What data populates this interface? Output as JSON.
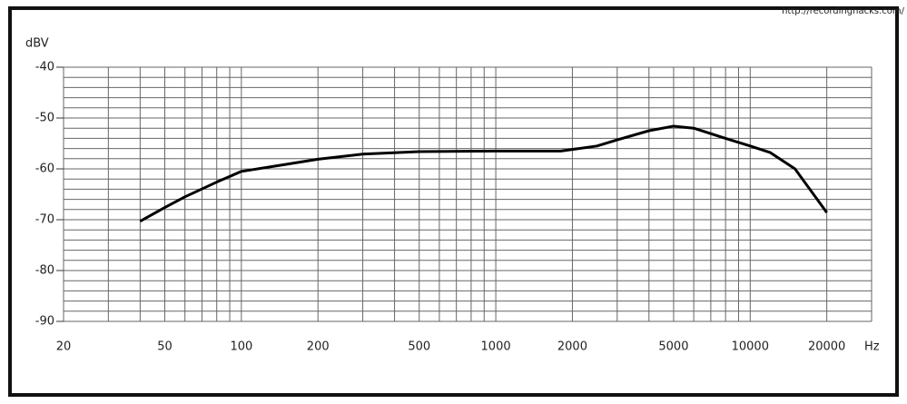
{
  "chart_data": {
    "type": "line",
    "watermark": "http://recordinghacks.com/",
    "ylabel": "dBV",
    "xlabel": "Hz",
    "log_x": true,
    "grid": true,
    "xlim": [
      20,
      30000
    ],
    "ylim": [
      -90,
      -40
    ],
    "xticks": [
      20,
      50,
      100,
      200,
      500,
      1000,
      2000,
      5000,
      10000,
      20000
    ],
    "yticks": [
      -40,
      -50,
      -60,
      -70,
      -80,
      -90
    ],
    "xgrid": [
      20,
      30,
      40,
      50,
      60,
      70,
      80,
      90,
      100,
      200,
      300,
      400,
      500,
      600,
      700,
      800,
      900,
      1000,
      2000,
      3000,
      4000,
      5000,
      6000,
      7000,
      8000,
      9000,
      10000,
      20000,
      30000
    ],
    "ygrid": [
      -40,
      -42,
      -44,
      -46,
      -48,
      -50,
      -52,
      -54,
      -56,
      -58,
      -60,
      -62,
      -64,
      -66,
      -68,
      -70,
      -72,
      -74,
      -76,
      -78,
      -80,
      -82,
      -84,
      -86,
      -88,
      -90
    ],
    "series": [
      {
        "color": "#000000",
        "x": [
          40,
          50,
          60,
          80,
          100,
          150,
          200,
          300,
          500,
          1000,
          1800,
          2500,
          3000,
          4000,
          5000,
          6000,
          8000,
          10000,
          12000,
          15000,
          20000
        ],
        "values": [
          -70.3,
          -67.6,
          -65.5,
          -62.6,
          -60.5,
          -59.1,
          -58.1,
          -57.1,
          -56.6,
          -56.5,
          -56.5,
          -55.5,
          -54.3,
          -52.5,
          -51.6,
          -52.0,
          -54.0,
          -55.5,
          -56.8,
          -60.0,
          -68.6
        ]
      }
    ]
  }
}
